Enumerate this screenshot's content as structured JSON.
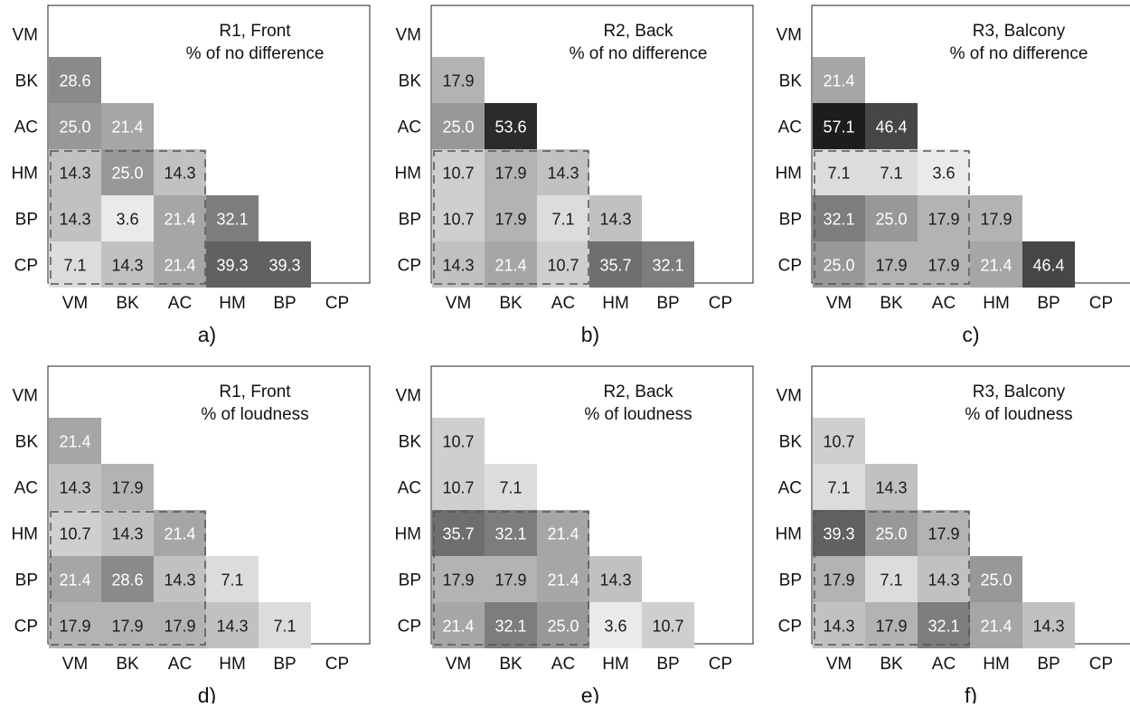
{
  "row_labels": [
    "VM",
    "BK",
    "AC",
    "HM",
    "BP",
    "CP"
  ],
  "col_labels": [
    "VM",
    "BK",
    "AC",
    "HM",
    "BP",
    "CP"
  ],
  "chart_data": [
    {
      "type": "heatmap",
      "panel_label": "a)",
      "title": "R1, Front",
      "subtitle": "% of no difference",
      "cells": [
        {
          "row": "BK",
          "col": "VM",
          "value": 28.6
        },
        {
          "row": "AC",
          "col": "VM",
          "value": 25.0
        },
        {
          "row": "AC",
          "col": "BK",
          "value": 21.4
        },
        {
          "row": "HM",
          "col": "VM",
          "value": 14.3
        },
        {
          "row": "HM",
          "col": "BK",
          "value": 25.0
        },
        {
          "row": "HM",
          "col": "AC",
          "value": 14.3
        },
        {
          "row": "BP",
          "col": "VM",
          "value": 14.3
        },
        {
          "row": "BP",
          "col": "BK",
          "value": 3.6
        },
        {
          "row": "BP",
          "col": "AC",
          "value": 21.4
        },
        {
          "row": "BP",
          "col": "HM",
          "value": 32.1
        },
        {
          "row": "CP",
          "col": "VM",
          "value": 7.1
        },
        {
          "row": "CP",
          "col": "BK",
          "value": 14.3
        },
        {
          "row": "CP",
          "col": "AC",
          "value": 21.4
        },
        {
          "row": "CP",
          "col": "HM",
          "value": 39.3
        },
        {
          "row": "CP",
          "col": "BP",
          "value": 39.3
        }
      ]
    },
    {
      "type": "heatmap",
      "panel_label": "b)",
      "title": "R2, Back",
      "subtitle": "% of no difference",
      "cells": [
        {
          "row": "BK",
          "col": "VM",
          "value": 17.9
        },
        {
          "row": "AC",
          "col": "VM",
          "value": 25.0
        },
        {
          "row": "AC",
          "col": "BK",
          "value": 53.6
        },
        {
          "row": "HM",
          "col": "VM",
          "value": 10.7
        },
        {
          "row": "HM",
          "col": "BK",
          "value": 17.9
        },
        {
          "row": "HM",
          "col": "AC",
          "value": 14.3
        },
        {
          "row": "BP",
          "col": "VM",
          "value": 10.7
        },
        {
          "row": "BP",
          "col": "BK",
          "value": 17.9
        },
        {
          "row": "BP",
          "col": "AC",
          "value": 7.1
        },
        {
          "row": "BP",
          "col": "HM",
          "value": 14.3
        },
        {
          "row": "CP",
          "col": "VM",
          "value": 14.3
        },
        {
          "row": "CP",
          "col": "BK",
          "value": 21.4
        },
        {
          "row": "CP",
          "col": "AC",
          "value": 10.7
        },
        {
          "row": "CP",
          "col": "HM",
          "value": 35.7
        },
        {
          "row": "CP",
          "col": "BP",
          "value": 32.1
        }
      ]
    },
    {
      "type": "heatmap",
      "panel_label": "c)",
      "title": "R3, Balcony",
      "subtitle": "% of no difference",
      "cells": [
        {
          "row": "BK",
          "col": "VM",
          "value": 21.4
        },
        {
          "row": "AC",
          "col": "VM",
          "value": 57.1
        },
        {
          "row": "AC",
          "col": "BK",
          "value": 46.4
        },
        {
          "row": "HM",
          "col": "VM",
          "value": 7.1
        },
        {
          "row": "HM",
          "col": "BK",
          "value": 7.1
        },
        {
          "row": "HM",
          "col": "AC",
          "value": 3.6
        },
        {
          "row": "BP",
          "col": "VM",
          "value": 32.1
        },
        {
          "row": "BP",
          "col": "BK",
          "value": 25.0
        },
        {
          "row": "BP",
          "col": "AC",
          "value": 17.9
        },
        {
          "row": "BP",
          "col": "HM",
          "value": 17.9
        },
        {
          "row": "CP",
          "col": "VM",
          "value": 25.0
        },
        {
          "row": "CP",
          "col": "BK",
          "value": 17.9
        },
        {
          "row": "CP",
          "col": "AC",
          "value": 17.9
        },
        {
          "row": "CP",
          "col": "HM",
          "value": 21.4
        },
        {
          "row": "CP",
          "col": "BP",
          "value": 46.4
        }
      ]
    },
    {
      "type": "heatmap",
      "panel_label": "d)",
      "title": "R1, Front",
      "subtitle": "% of loudness",
      "cells": [
        {
          "row": "BK",
          "col": "VM",
          "value": 21.4
        },
        {
          "row": "AC",
          "col": "VM",
          "value": 14.3
        },
        {
          "row": "AC",
          "col": "BK",
          "value": 17.9
        },
        {
          "row": "HM",
          "col": "VM",
          "value": 10.7
        },
        {
          "row": "HM",
          "col": "BK",
          "value": 14.3
        },
        {
          "row": "HM",
          "col": "AC",
          "value": 21.4
        },
        {
          "row": "BP",
          "col": "VM",
          "value": 21.4
        },
        {
          "row": "BP",
          "col": "BK",
          "value": 28.6
        },
        {
          "row": "BP",
          "col": "AC",
          "value": 14.3
        },
        {
          "row": "BP",
          "col": "HM",
          "value": 7.1
        },
        {
          "row": "CP",
          "col": "VM",
          "value": 17.9
        },
        {
          "row": "CP",
          "col": "BK",
          "value": 17.9
        },
        {
          "row": "CP",
          "col": "AC",
          "value": 17.9
        },
        {
          "row": "CP",
          "col": "HM",
          "value": 14.3
        },
        {
          "row": "CP",
          "col": "BP",
          "value": 7.1
        }
      ]
    },
    {
      "type": "heatmap",
      "panel_label": "e)",
      "title": "R2, Back",
      "subtitle": "% of loudness",
      "cells": [
        {
          "row": "BK",
          "col": "VM",
          "value": 10.7
        },
        {
          "row": "AC",
          "col": "VM",
          "value": 10.7
        },
        {
          "row": "AC",
          "col": "BK",
          "value": 7.1
        },
        {
          "row": "HM",
          "col": "VM",
          "value": 35.7
        },
        {
          "row": "HM",
          "col": "BK",
          "value": 32.1
        },
        {
          "row": "HM",
          "col": "AC",
          "value": 21.4
        },
        {
          "row": "BP",
          "col": "VM",
          "value": 17.9
        },
        {
          "row": "BP",
          "col": "BK",
          "value": 17.9
        },
        {
          "row": "BP",
          "col": "AC",
          "value": 21.4
        },
        {
          "row": "BP",
          "col": "HM",
          "value": 14.3
        },
        {
          "row": "CP",
          "col": "VM",
          "value": 21.4
        },
        {
          "row": "CP",
          "col": "BK",
          "value": 32.1
        },
        {
          "row": "CP",
          "col": "AC",
          "value": 25.0
        },
        {
          "row": "CP",
          "col": "HM",
          "value": 3.6
        },
        {
          "row": "CP",
          "col": "BP",
          "value": 10.7
        }
      ]
    },
    {
      "type": "heatmap",
      "panel_label": "f)",
      "title": "R3, Balcony",
      "subtitle": "% of loudness",
      "cells": [
        {
          "row": "BK",
          "col": "VM",
          "value": 10.7
        },
        {
          "row": "AC",
          "col": "VM",
          "value": 7.1
        },
        {
          "row": "AC",
          "col": "BK",
          "value": 14.3
        },
        {
          "row": "HM",
          "col": "VM",
          "value": 39.3
        },
        {
          "row": "HM",
          "col": "BK",
          "value": 25.0
        },
        {
          "row": "HM",
          "col": "AC",
          "value": 17.9
        },
        {
          "row": "BP",
          "col": "VM",
          "value": 17.9
        },
        {
          "row": "BP",
          "col": "BK",
          "value": 7.1
        },
        {
          "row": "BP",
          "col": "AC",
          "value": 14.3
        },
        {
          "row": "BP",
          "col": "HM",
          "value": 25.0
        },
        {
          "row": "CP",
          "col": "VM",
          "value": 14.3
        },
        {
          "row": "CP",
          "col": "BK",
          "value": 17.9
        },
        {
          "row": "CP",
          "col": "AC",
          "value": 32.1
        },
        {
          "row": "CP",
          "col": "HM",
          "value": 21.4
        },
        {
          "row": "CP",
          "col": "BP",
          "value": 14.3
        }
      ]
    }
  ]
}
